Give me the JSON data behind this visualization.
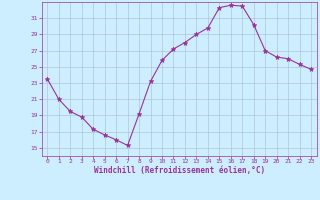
{
  "x": [
    0,
    1,
    2,
    3,
    4,
    5,
    6,
    7,
    8,
    9,
    10,
    11,
    12,
    13,
    14,
    15,
    16,
    17,
    18,
    19,
    20,
    21,
    22,
    23
  ],
  "y": [
    23.5,
    21.0,
    19.5,
    18.8,
    17.3,
    16.6,
    16.0,
    15.3,
    19.2,
    23.2,
    25.8,
    27.2,
    28.0,
    29.0,
    29.8,
    32.3,
    32.6,
    32.5,
    30.2,
    27.0,
    26.2,
    26.0,
    25.3,
    24.7
  ],
  "line_color": "#993399",
  "marker": "*",
  "marker_color": "#993399",
  "bg_color": "#cceeff",
  "grid_color": "#aabbcc",
  "xlabel": "Windchill (Refroidissement éolien,°C)",
  "xlabel_color": "#993399",
  "tick_color": "#993399",
  "ylim": [
    14,
    33
  ],
  "xlim": [
    -0.5,
    23.5
  ],
  "yticks": [
    15,
    17,
    19,
    21,
    23,
    25,
    27,
    29,
    31
  ],
  "xticks": [
    0,
    1,
    2,
    3,
    4,
    5,
    6,
    7,
    8,
    9,
    10,
    11,
    12,
    13,
    14,
    15,
    16,
    17,
    18,
    19,
    20,
    21,
    22,
    23
  ],
  "figsize": [
    3.2,
    2.0
  ],
  "dpi": 100
}
